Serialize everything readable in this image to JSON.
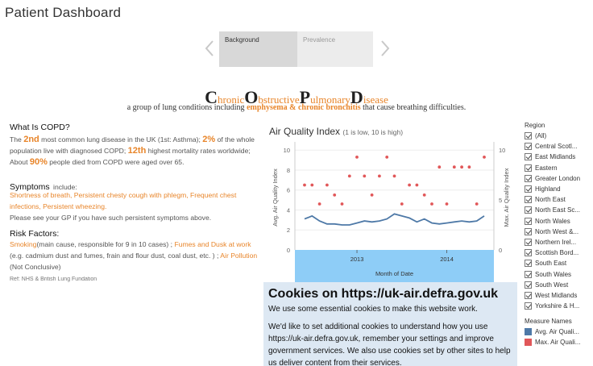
{
  "page": {
    "title": "Patient Dashboard"
  },
  "tabs": [
    {
      "label": "Background"
    },
    {
      "label": "Prevalence"
    }
  ],
  "copd": {
    "heading_letters": [
      {
        "big": "C",
        "small": "hronic"
      },
      {
        "big": "O",
        "small": "bstructive"
      },
      {
        "big": "P",
        "small": "ulmonary"
      },
      {
        "big": "D",
        "small": "isease"
      }
    ],
    "subtitle_pre": "a group of lung conditions including",
    "subtitle_hl": "emphysema & chronic bronchitis",
    "subtitle_post": "that cause breathing difficulties."
  },
  "what_is": {
    "heading": "What Is COPD?",
    "p1": "The",
    "v1": "2nd",
    "p2": "most common lung disease in the UK (1st: Asthma);",
    "v2": "2%",
    "p3": "of the whole population live with diagnosed COPD;",
    "v3": "12th",
    "p4": "highest mortality rates worldwide; About",
    "v4": "90%",
    "p5": "people died from COPD were aged over 65."
  },
  "symptoms": {
    "heading": "Symptoms",
    "heading_suffix": "include:",
    "list": "Shortness of breath, Persistent chesty cough with phlegm, Frequent chest infections, Persistent wheezing.",
    "note": "Please see your GP if you have such persistent symptoms above."
  },
  "risk": {
    "heading": "Risk Factors:",
    "f1": "Smoking",
    "f1_desc": "(main cause, responsible for 9 in 10 cases) ;",
    "f2": "Fumes and Dusk at work",
    "f2_desc": "(e.g. cadmium dust and fumes, frain and flour dust, coal dust, etc. ) ;",
    "f3": "Air Pollution",
    "f3_desc": "(Not Conclusive)"
  },
  "ref": "Ref: NHS & British Lung Fundation",
  "aq": {
    "title": "Air Quality Index",
    "subtitle": "(1 is low, 10 is high)"
  },
  "chart_data": {
    "type": "line",
    "title": "Air Quality Index",
    "subtitle": "(1 is low, 10 is high)",
    "xlabel": "Month of Date",
    "ylabel_left": "Avg. Air Quality Index",
    "ylabel_right": "Max. Air Quality Index",
    "x_ticks": [
      "2013",
      "2014"
    ],
    "y_left_ticks": [
      0,
      2,
      4,
      6,
      8,
      10
    ],
    "y_right_ticks": [
      0,
      5,
      10
    ],
    "ylim": [
      0,
      10.5
    ],
    "series": [
      {
        "name": "Avg. Air Quali...",
        "color": "#4e79a7",
        "kind": "line",
        "values": [
          3.1,
          3.4,
          2.9,
          2.6,
          2.6,
          2.5,
          2.5,
          2.7,
          2.9,
          2.8,
          2.9,
          3.1,
          3.6,
          3.4,
          3.2,
          2.8,
          3.1,
          2.7,
          2.6,
          2.7,
          2.8,
          2.9,
          2.8,
          2.9,
          3.4
        ]
      },
      {
        "name": "Max. Air Quali...",
        "color": "#e15759",
        "kind": "dots",
        "values": [
          6.5,
          6.5,
          4.6,
          6.5,
          5.5,
          4.6,
          7.4,
          9.3,
          7.4,
          5.5,
          7.4,
          9.3,
          7.4,
          4.6,
          6.5,
          6.5,
          5.5,
          4.6,
          8.3,
          4.6,
          8.3,
          8.3,
          8.3,
          4.6,
          9.3
        ]
      }
    ]
  },
  "cookie": {
    "heading": "Cookies on https://uk-air.defra.gov.uk",
    "p1": "We use some essential cookies to make this website work.",
    "p2": "We'd like to set additional cookies to understand how you use https://uk-air.defra.gov.uk, remember your settings and improve government services. We also use cookies set by other sites to help us deliver content from their services."
  },
  "region": {
    "title": "Region",
    "items": [
      "(All)",
      "Central Scotl...",
      "East Midlands",
      "Eastern",
      "Greater London",
      "Highland",
      "North East",
      "North East Sc...",
      "North Wales",
      "North West &...",
      "Northern Irel...",
      "Scottish Bord...",
      "South East",
      "South Wales",
      "South West",
      "West Midlands",
      "Yorkshire & H..."
    ]
  },
  "measures": {
    "title": "Measure Names",
    "items": [
      {
        "label": "Avg. Air Quali...",
        "color": "#4e79a7"
      },
      {
        "label": "Max. Air Quali...",
        "color": "#e15759"
      }
    ]
  }
}
